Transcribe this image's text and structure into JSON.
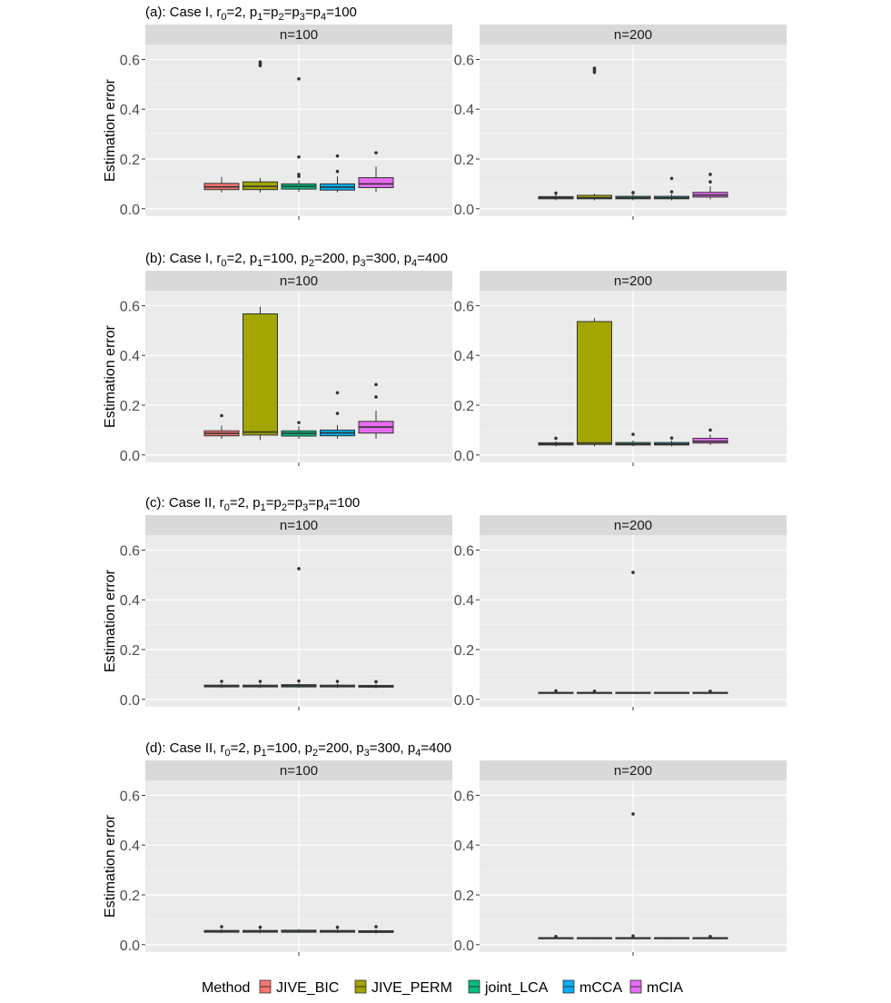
{
  "figure": {
    "legend": {
      "title": "Method",
      "items": [
        {
          "label": "JIVE_BIC",
          "color": "#F8766D"
        },
        {
          "label": "JIVE_PERM",
          "color": "#A3A500"
        },
        {
          "label": "joint_LCA",
          "color": "#00BF7D"
        },
        {
          "label": "mCCA",
          "color": "#00B0F6"
        },
        {
          "label": "mCIA",
          "color": "#E76BF3"
        }
      ]
    }
  },
  "chart_data": [
    {
      "type": "boxplot",
      "title_parts": [
        [
          "(a): Case I, r",
          ""
        ],
        [
          "0",
          "sub"
        ],
        [
          "=2, p",
          ""
        ],
        [
          "1",
          "sub"
        ],
        [
          "=p",
          ""
        ],
        [
          "2",
          "sub"
        ],
        [
          "=p",
          ""
        ],
        [
          "3",
          "sub"
        ],
        [
          "=p",
          ""
        ],
        [
          "4",
          "sub"
        ],
        [
          "=100",
          ""
        ]
      ],
      "ylabel": "Estimation error",
      "ylim": [
        -0.03,
        0.66
      ],
      "yticks": [
        0.0,
        0.2,
        0.4,
        0.6
      ],
      "ytick_labels": [
        "0.0",
        "0.2",
        "0.4",
        "0.6"
      ],
      "panels": [
        {
          "strip": "n=100",
          "boxes": [
            {
              "method": "JIVE_BIC",
              "min": 0.065,
              "q1": 0.077,
              "median": 0.088,
              "q3": 0.102,
              "max": 0.128,
              "outliers": []
            },
            {
              "method": "JIVE_PERM",
              "min": 0.065,
              "q1": 0.077,
              "median": 0.09,
              "q3": 0.108,
              "max": 0.124,
              "outliers": [
                0.575,
                0.58,
                0.585,
                0.59
              ]
            },
            {
              "method": "joint_LCA",
              "min": 0.068,
              "q1": 0.079,
              "median": 0.09,
              "q3": 0.1,
              "max": 0.115,
              "outliers": [
                0.13,
                0.138,
                0.208,
                0.522
              ]
            },
            {
              "method": "mCCA",
              "min": 0.066,
              "q1": 0.075,
              "median": 0.087,
              "q3": 0.1,
              "max": 0.13,
              "outliers": [
                0.15,
                0.212
              ]
            },
            {
              "method": "mCIA",
              "min": 0.068,
              "q1": 0.085,
              "median": 0.1,
              "q3": 0.125,
              "max": 0.17,
              "outliers": [
                0.225
              ]
            }
          ]
        },
        {
          "strip": "n=200",
          "boxes": [
            {
              "method": "JIVE_BIC",
              "min": 0.034,
              "q1": 0.04,
              "median": 0.044,
              "q3": 0.049,
              "max": 0.057,
              "outliers": [
                0.063
              ]
            },
            {
              "method": "JIVE_PERM",
              "min": 0.034,
              "q1": 0.04,
              "median": 0.044,
              "q3": 0.054,
              "max": 0.06,
              "outliers": [
                0.548,
                0.555,
                0.56,
                0.565
              ]
            },
            {
              "method": "joint_LCA",
              "min": 0.034,
              "q1": 0.04,
              "median": 0.044,
              "q3": 0.05,
              "max": 0.058,
              "outliers": [
                0.065
              ]
            },
            {
              "method": "mCCA",
              "min": 0.034,
              "q1": 0.04,
              "median": 0.044,
              "q3": 0.05,
              "max": 0.058,
              "outliers": [
                0.068,
                0.122
              ]
            },
            {
              "method": "mCIA",
              "min": 0.038,
              "q1": 0.047,
              "median": 0.055,
              "q3": 0.066,
              "max": 0.09,
              "outliers": [
                0.108,
                0.138
              ]
            }
          ]
        }
      ]
    },
    {
      "type": "boxplot",
      "title_parts": [
        [
          "(b): Case I, r",
          ""
        ],
        [
          "0",
          "sub"
        ],
        [
          "=2, p",
          ""
        ],
        [
          "1",
          "sub"
        ],
        [
          "=100, p",
          ""
        ],
        [
          "2",
          "sub"
        ],
        [
          "=200, p",
          ""
        ],
        [
          "3",
          "sub"
        ],
        [
          "=300, p",
          ""
        ],
        [
          "4",
          "sub"
        ],
        [
          "=400",
          ""
        ]
      ],
      "ylabel": "Estimation error",
      "ylim": [
        -0.03,
        0.66
      ],
      "yticks": [
        0.0,
        0.2,
        0.4,
        0.6
      ],
      "ytick_labels": [
        "0.0",
        "0.2",
        "0.4",
        "0.6"
      ],
      "panels": [
        {
          "strip": "n=100",
          "boxes": [
            {
              "method": "JIVE_BIC",
              "min": 0.065,
              "q1": 0.077,
              "median": 0.087,
              "q3": 0.097,
              "max": 0.118,
              "outliers": [
                0.158
              ]
            },
            {
              "method": "JIVE_PERM",
              "min": 0.06,
              "q1": 0.08,
              "median": 0.092,
              "q3": 0.567,
              "max": 0.595,
              "outliers": []
            },
            {
              "method": "joint_LCA",
              "min": 0.065,
              "q1": 0.076,
              "median": 0.087,
              "q3": 0.097,
              "max": 0.115,
              "outliers": [
                0.13
              ]
            },
            {
              "method": "mCCA",
              "min": 0.065,
              "q1": 0.077,
              "median": 0.089,
              "q3": 0.1,
              "max": 0.12,
              "outliers": [
                0.167,
                0.25
              ]
            },
            {
              "method": "mCIA",
              "min": 0.065,
              "q1": 0.088,
              "median": 0.112,
              "q3": 0.135,
              "max": 0.178,
              "outliers": [
                0.233,
                0.283
              ]
            }
          ]
        },
        {
          "strip": "n=200",
          "boxes": [
            {
              "method": "JIVE_BIC",
              "min": 0.035,
              "q1": 0.04,
              "median": 0.044,
              "q3": 0.049,
              "max": 0.055,
              "outliers": [
                0.067
              ]
            },
            {
              "method": "JIVE_PERM",
              "min": 0.035,
              "q1": 0.042,
              "median": 0.048,
              "q3": 0.536,
              "max": 0.55,
              "outliers": []
            },
            {
              "method": "joint_LCA",
              "min": 0.035,
              "q1": 0.04,
              "median": 0.044,
              "q3": 0.05,
              "max": 0.058,
              "outliers": [
                0.083
              ]
            },
            {
              "method": "mCCA",
              "min": 0.035,
              "q1": 0.04,
              "median": 0.044,
              "q3": 0.05,
              "max": 0.058,
              "outliers": [
                0.068
              ]
            },
            {
              "method": "mCIA",
              "min": 0.04,
              "q1": 0.048,
              "median": 0.055,
              "q3": 0.067,
              "max": 0.082,
              "outliers": [
                0.1
              ]
            }
          ]
        }
      ]
    },
    {
      "type": "boxplot",
      "title_parts": [
        [
          "(c): Case II, r",
          ""
        ],
        [
          "0",
          "sub"
        ],
        [
          "=2, p",
          ""
        ],
        [
          "1",
          "sub"
        ],
        [
          "=p",
          ""
        ],
        [
          "2",
          "sub"
        ],
        [
          "=p",
          ""
        ],
        [
          "3",
          "sub"
        ],
        [
          "=p",
          ""
        ],
        [
          "4",
          "sub"
        ],
        [
          "=100",
          ""
        ]
      ],
      "ylabel": "Estimation error",
      "ylim": [
        -0.03,
        0.66
      ],
      "yticks": [
        0.0,
        0.2,
        0.4,
        0.6
      ],
      "ytick_labels": [
        "0.0",
        "0.2",
        "0.4",
        "0.6"
      ],
      "panels": [
        {
          "strip": "n=100",
          "boxes": [
            {
              "method": "JIVE_BIC",
              "min": 0.046,
              "q1": 0.05,
              "median": 0.054,
              "q3": 0.057,
              "max": 0.062,
              "outliers": [
                0.072
              ]
            },
            {
              "method": "JIVE_PERM",
              "min": 0.046,
              "q1": 0.05,
              "median": 0.054,
              "q3": 0.057,
              "max": 0.062,
              "outliers": [
                0.072
              ]
            },
            {
              "method": "joint_LCA",
              "min": 0.046,
              "q1": 0.05,
              "median": 0.055,
              "q3": 0.059,
              "max": 0.064,
              "outliers": [
                0.074,
                0.525
              ]
            },
            {
              "method": "mCCA",
              "min": 0.046,
              "q1": 0.05,
              "median": 0.054,
              "q3": 0.057,
              "max": 0.062,
              "outliers": [
                0.072
              ]
            },
            {
              "method": "mCIA",
              "min": 0.045,
              "q1": 0.049,
              "median": 0.053,
              "q3": 0.056,
              "max": 0.061,
              "outliers": [
                0.071
              ]
            }
          ]
        },
        {
          "strip": "n=200",
          "boxes": [
            {
              "method": "JIVE_BIC",
              "min": 0.024,
              "q1": 0.026,
              "median": 0.027,
              "q3": 0.028,
              "max": 0.03,
              "outliers": [
                0.034
              ]
            },
            {
              "method": "JIVE_PERM",
              "min": 0.024,
              "q1": 0.026,
              "median": 0.027,
              "q3": 0.028,
              "max": 0.03,
              "outliers": [
                0.033
              ]
            },
            {
              "method": "joint_LCA",
              "min": 0.024,
              "q1": 0.026,
              "median": 0.027,
              "q3": 0.028,
              "max": 0.03,
              "outliers": [
                0.51
              ]
            },
            {
              "method": "mCCA",
              "min": 0.024,
              "q1": 0.026,
              "median": 0.027,
              "q3": 0.028,
              "max": 0.03,
              "outliers": []
            },
            {
              "method": "mCIA",
              "min": 0.024,
              "q1": 0.026,
              "median": 0.027,
              "q3": 0.028,
              "max": 0.03,
              "outliers": [
                0.033
              ]
            }
          ]
        }
      ]
    },
    {
      "type": "boxplot",
      "title_parts": [
        [
          "(d): Case II, r",
          ""
        ],
        [
          "0",
          "sub"
        ],
        [
          "=2, p",
          ""
        ],
        [
          "1",
          "sub"
        ],
        [
          "=100, p",
          ""
        ],
        [
          "2",
          "sub"
        ],
        [
          "=200, p",
          ""
        ],
        [
          "3",
          "sub"
        ],
        [
          "=300, p",
          ""
        ],
        [
          "4",
          "sub"
        ],
        [
          "=400",
          ""
        ]
      ],
      "ylabel": "Estimation error",
      "ylim": [
        -0.03,
        0.66
      ],
      "yticks": [
        0.0,
        0.2,
        0.4,
        0.6
      ],
      "ytick_labels": [
        "0.0",
        "0.2",
        "0.4",
        "0.6"
      ],
      "panels": [
        {
          "strip": "n=100",
          "boxes": [
            {
              "method": "JIVE_BIC",
              "min": 0.046,
              "q1": 0.05,
              "median": 0.054,
              "q3": 0.057,
              "max": 0.062,
              "outliers": [
                0.072
              ]
            },
            {
              "method": "JIVE_PERM",
              "min": 0.046,
              "q1": 0.05,
              "median": 0.054,
              "q3": 0.057,
              "max": 0.062,
              "outliers": [
                0.07
              ]
            },
            {
              "method": "joint_LCA",
              "min": 0.046,
              "q1": 0.05,
              "median": 0.054,
              "q3": 0.058,
              "max": 0.063,
              "outliers": []
            },
            {
              "method": "mCCA",
              "min": 0.046,
              "q1": 0.05,
              "median": 0.054,
              "q3": 0.057,
              "max": 0.062,
              "outliers": [
                0.07
              ]
            },
            {
              "method": "mCIA",
              "min": 0.045,
              "q1": 0.049,
              "median": 0.053,
              "q3": 0.056,
              "max": 0.061,
              "outliers": [
                0.072
              ]
            }
          ]
        },
        {
          "strip": "n=200",
          "boxes": [
            {
              "method": "JIVE_BIC",
              "min": 0.024,
              "q1": 0.026,
              "median": 0.027,
              "q3": 0.028,
              "max": 0.03,
              "outliers": [
                0.033
              ]
            },
            {
              "method": "JIVE_PERM",
              "min": 0.024,
              "q1": 0.026,
              "median": 0.027,
              "q3": 0.028,
              "max": 0.03,
              "outliers": []
            },
            {
              "method": "joint_LCA",
              "min": 0.024,
              "q1": 0.026,
              "median": 0.027,
              "q3": 0.028,
              "max": 0.03,
              "outliers": [
                0.035,
                0.525
              ]
            },
            {
              "method": "mCCA",
              "min": 0.024,
              "q1": 0.026,
              "median": 0.027,
              "q3": 0.028,
              "max": 0.03,
              "outliers": []
            },
            {
              "method": "mCIA",
              "min": 0.024,
              "q1": 0.026,
              "median": 0.027,
              "q3": 0.028,
              "max": 0.03,
              "outliers": [
                0.033
              ]
            }
          ]
        }
      ]
    }
  ]
}
